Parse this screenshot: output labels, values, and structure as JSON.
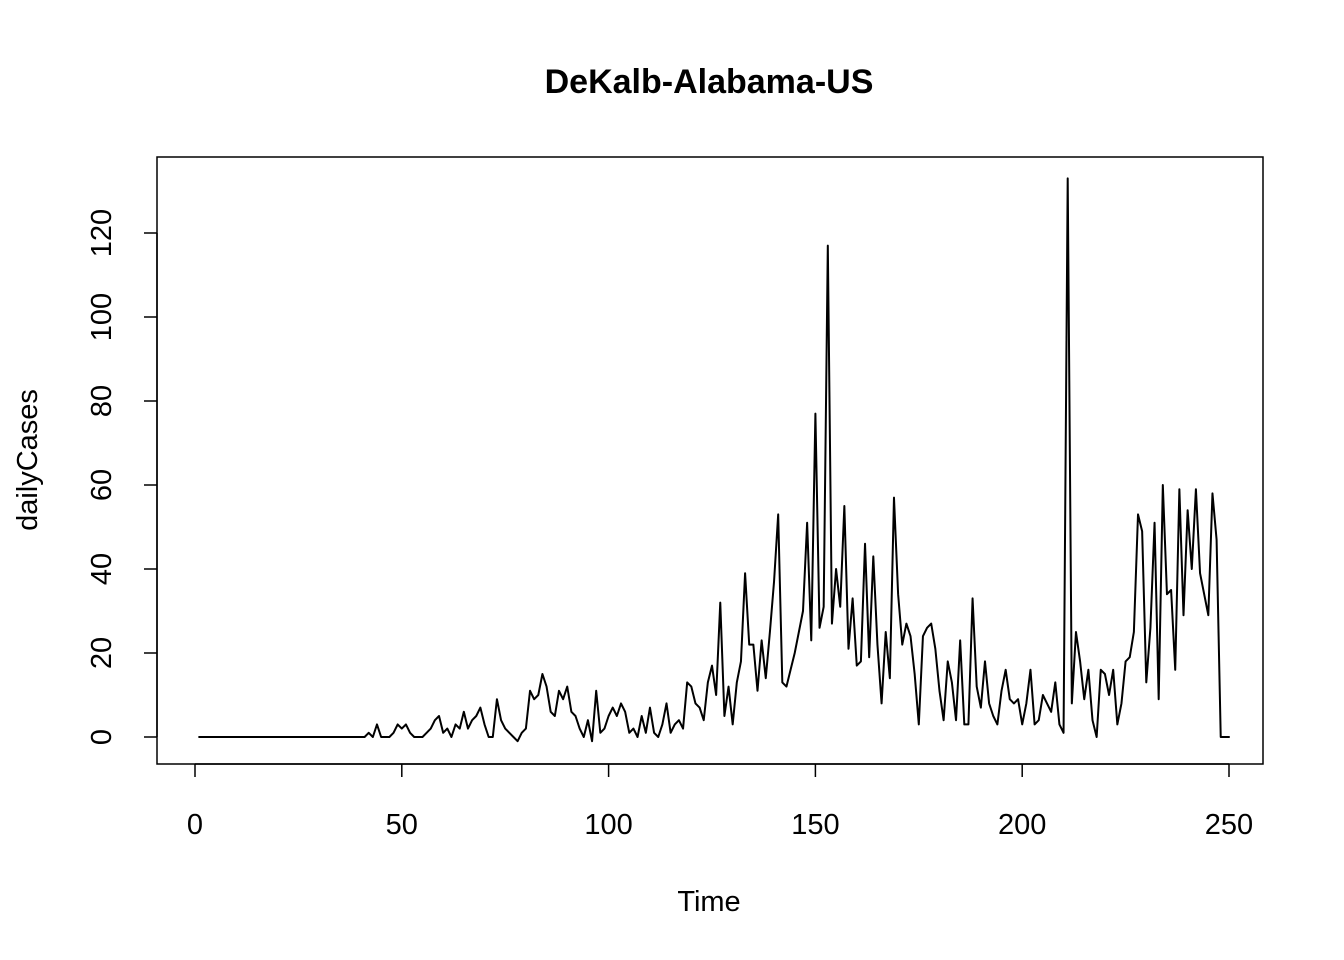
{
  "chart_data": {
    "type": "line",
    "title": "DeKalb-Alabama-US",
    "xlabel": "Time",
    "ylabel": "dailyCases",
    "xlim": [
      1,
      248
    ],
    "ylim": [
      0,
      133
    ],
    "x_ticks": [
      0,
      50,
      100,
      150,
      200,
      250
    ],
    "y_ticks": [
      0,
      20,
      40,
      60,
      80,
      100,
      120
    ],
    "grid": false,
    "legend": "none",
    "line_color": "#000000",
    "series": [
      {
        "x_start": 1,
        "values": [
          0,
          0,
          0,
          0,
          0,
          0,
          0,
          0,
          0,
          0,
          0,
          0,
          0,
          0,
          0,
          0,
          0,
          0,
          0,
          0,
          0,
          0,
          0,
          0,
          0,
          0,
          0,
          0,
          0,
          0,
          0,
          0,
          0,
          0,
          0,
          0,
          0,
          0,
          0,
          0,
          0,
          1,
          0,
          3,
          0,
          0,
          0,
          1,
          3,
          2,
          3,
          1,
          0,
          0,
          0,
          1,
          2,
          4,
          5,
          1,
          2,
          0,
          3,
          2,
          6,
          2,
          4,
          5,
          7,
          3,
          0,
          0,
          9,
          4,
          2,
          1,
          0,
          -1,
          1,
          2,
          11,
          9,
          10,
          15,
          12,
          6,
          5,
          11,
          9,
          12,
          6,
          5,
          2,
          0,
          4,
          -1,
          11,
          1,
          2,
          5,
          7,
          5,
          8,
          6,
          1,
          2,
          0,
          5,
          1,
          7,
          1,
          0,
          3,
          8,
          1,
          3,
          4,
          2,
          13,
          12,
          8,
          7,
          4,
          13,
          17,
          10,
          32,
          5,
          12,
          3,
          13,
          18,
          39,
          22,
          22,
          11,
          23,
          14,
          25,
          37,
          53,
          13,
          12,
          16,
          20,
          25,
          30,
          51,
          23,
          77,
          26,
          31,
          117,
          27,
          40,
          31,
          55,
          21,
          33,
          17,
          18,
          46,
          19,
          43,
          22,
          8,
          25,
          14,
          57,
          34,
          22,
          27,
          24,
          15,
          3,
          24,
          26,
          27,
          21,
          11,
          4,
          18,
          13,
          4,
          23,
          3,
          3,
          33,
          12,
          7,
          18,
          8,
          5,
          3,
          11,
          16,
          9,
          8,
          9,
          3,
          8,
          16,
          3,
          4,
          10,
          8,
          6,
          13,
          3,
          1,
          133,
          8,
          25,
          18,
          9,
          16,
          4,
          0,
          16,
          15,
          10,
          16,
          3,
          8,
          18,
          19,
          25,
          53,
          49,
          13,
          26,
          51,
          9,
          60,
          34,
          35,
          16,
          59,
          29,
          54,
          40,
          59,
          39,
          34,
          29,
          58,
          47,
          0,
          0,
          0
        ]
      }
    ]
  }
}
